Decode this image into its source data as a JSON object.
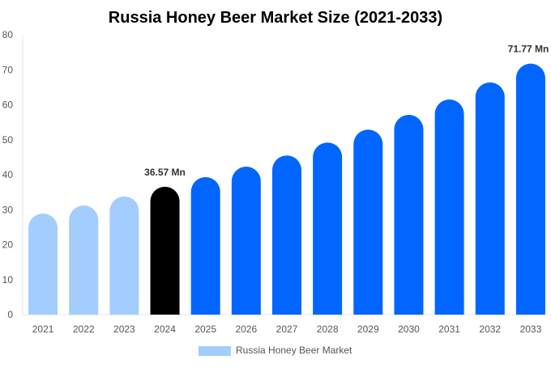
{
  "chart_data": {
    "type": "bar",
    "title": "Russia Honey Beer Market Size (2021-2033)",
    "xlabel": "",
    "ylabel": "",
    "ylim": [
      0,
      80
    ],
    "yticks": [
      0,
      10,
      20,
      30,
      40,
      50,
      60,
      70,
      80
    ],
    "grid": false,
    "legend_placement": "bottom",
    "categories": [
      "2021",
      "2022",
      "2023",
      "2024",
      "2025",
      "2026",
      "2027",
      "2028",
      "2029",
      "2030",
      "2031",
      "2032",
      "2033"
    ],
    "series": [
      {
        "name": "Russia Honey Beer Market",
        "values": [
          28.9,
          31.2,
          33.8,
          36.57,
          39.3,
          42.3,
          45.5,
          49.2,
          52.9,
          57.1,
          61.5,
          66.4,
          71.77
        ]
      }
    ],
    "bar_colors": [
      "#a3cdfd",
      "#a3cdfd",
      "#a3cdfd",
      "#000000",
      "#0066ff",
      "#0066ff",
      "#0066ff",
      "#0066ff",
      "#0066ff",
      "#0066ff",
      "#0066ff",
      "#0066ff",
      "#0066ff"
    ],
    "legend_color": "#a3cdfd",
    "annotations": [
      {
        "category": "2024",
        "text": "36.57 Mn"
      },
      {
        "category": "2033",
        "text": "71.77 Mn"
      }
    ]
  }
}
